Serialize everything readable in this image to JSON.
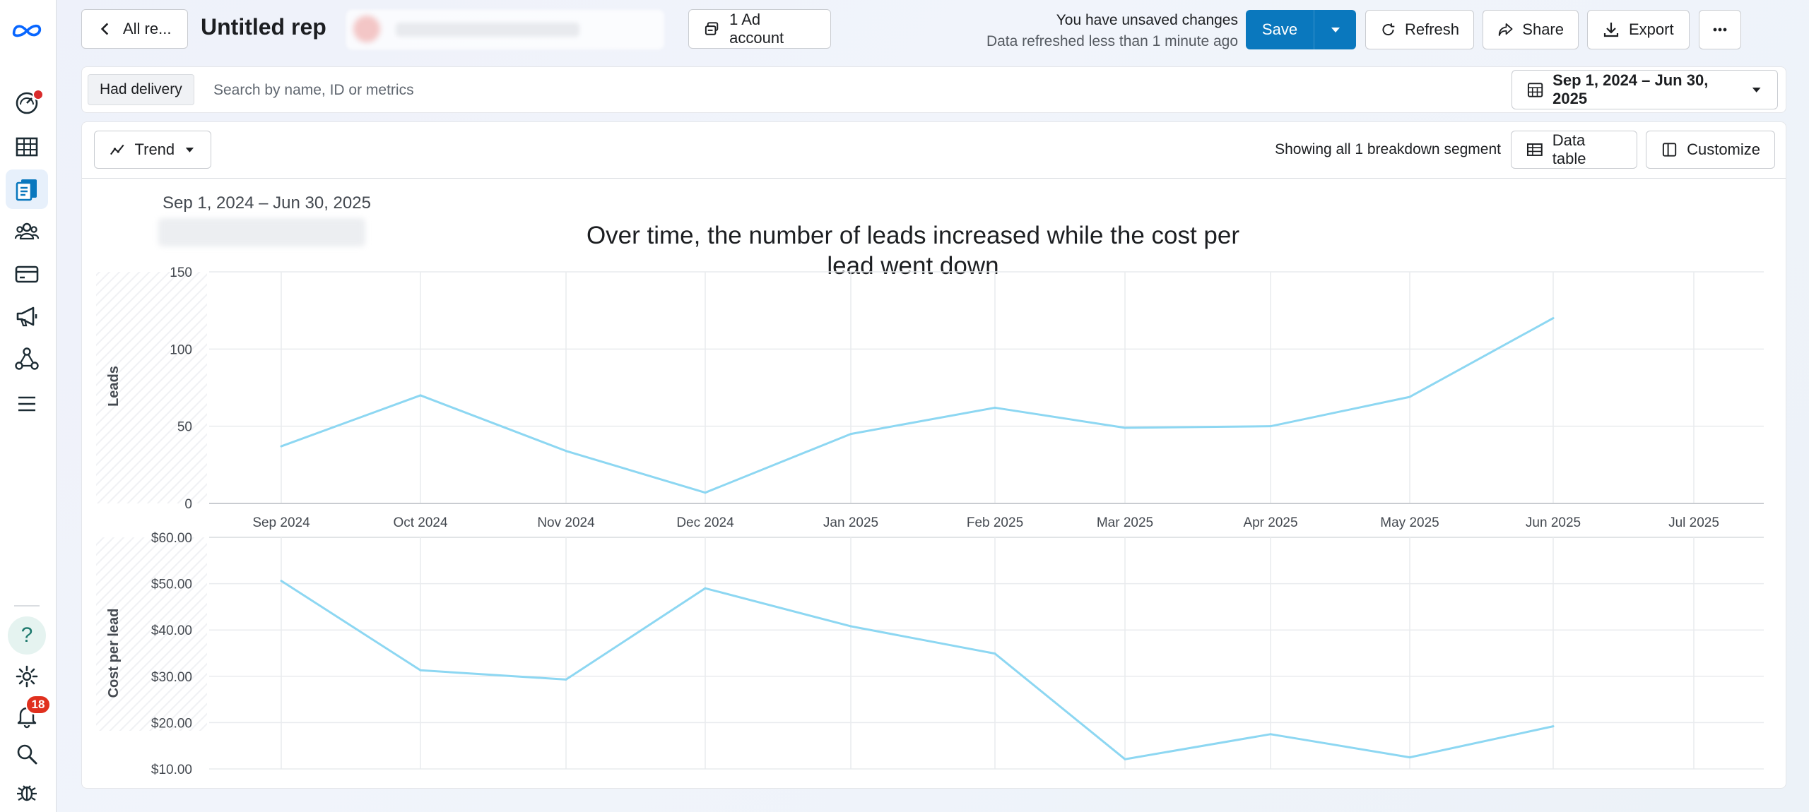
{
  "sidebar": {
    "items": [
      {
        "name": "sidebar-item-dashboard",
        "icon": "gauge-icon"
      },
      {
        "name": "sidebar-item-campaigns-table",
        "icon": "table-icon"
      },
      {
        "name": "sidebar-item-reports",
        "icon": "reports-icon",
        "active": true
      },
      {
        "name": "sidebar-item-audiences",
        "icon": "people-icon"
      },
      {
        "name": "sidebar-item-billing",
        "icon": "card-icon"
      },
      {
        "name": "sidebar-item-ads",
        "icon": "megaphone-icon"
      },
      {
        "name": "sidebar-item-connections",
        "icon": "network-icon"
      },
      {
        "name": "sidebar-item-menu",
        "icon": "hamburger-icon"
      }
    ],
    "help_glyph": "?",
    "notifications_count": "18"
  },
  "header": {
    "back_label": "All re...",
    "title": "Untitled rep",
    "ad_account_label": "1 Ad account",
    "status_line1": "You have unsaved changes",
    "status_line2": "Data refreshed less than 1 minute ago",
    "save_label": "Save",
    "refresh_label": "Refresh",
    "share_label": "Share",
    "export_label": "Export"
  },
  "filter": {
    "chip_label": "Had delivery",
    "search_placeholder": "Search by name, ID or metrics",
    "date_range": "Sep 1, 2024 – Jun 30, 2025"
  },
  "toolbar": {
    "view_label": "Trend",
    "segment_text": "Showing all 1 breakdown segment",
    "data_table_label": "Data table",
    "customize_label": "Customize"
  },
  "colors": {
    "accent": "#0a78be",
    "series": "#8dd7f2",
    "grid": "#e9ebee"
  },
  "chart_data": [
    {
      "type": "line",
      "title": "Over time, the number of leads increased while the cost per lead went down",
      "subtitle": "Sep 1, 2024 – Jun 30, 2025",
      "ylabel": "Leads",
      "xlabel": "",
      "ylim": [
        0,
        150
      ],
      "yticks": [
        "0",
        "50",
        "100",
        "150"
      ],
      "xticks": [
        "Sep 2024",
        "Oct 2024",
        "Nov 2024",
        "Dec 2024",
        "Jan 2025",
        "Feb 2025",
        "Mar 2025",
        "Apr 2025",
        "May 2025",
        "Jun 2025",
        "Jul 2025"
      ],
      "x": [
        "Sep 2024",
        "Oct 2024",
        "Nov 2024",
        "Dec 2024",
        "Jan 2025",
        "Feb 2025",
        "Mar 2025",
        "Apr 2025",
        "May 2025",
        "Jun 2025"
      ],
      "values": [
        37,
        70,
        34,
        7,
        45,
        62,
        49,
        50,
        69,
        120
      ]
    },
    {
      "type": "line",
      "ylabel": "Cost per lead",
      "xlabel": "",
      "ylim": [
        10,
        60
      ],
      "yticks": [
        "$10.00",
        "$20.00",
        "$30.00",
        "$40.00",
        "$50.00",
        "$60.00"
      ],
      "x": [
        "Sep 2024",
        "Oct 2024",
        "Nov 2024",
        "Dec 2024",
        "Jan 2025",
        "Feb 2025",
        "Mar 2025",
        "Apr 2025",
        "May 2025",
        "Jun 2025"
      ],
      "values": [
        50.6,
        31.3,
        29.3,
        49.0,
        40.8,
        34.9,
        12.1,
        17.5,
        12.5,
        19.2
      ]
    }
  ]
}
